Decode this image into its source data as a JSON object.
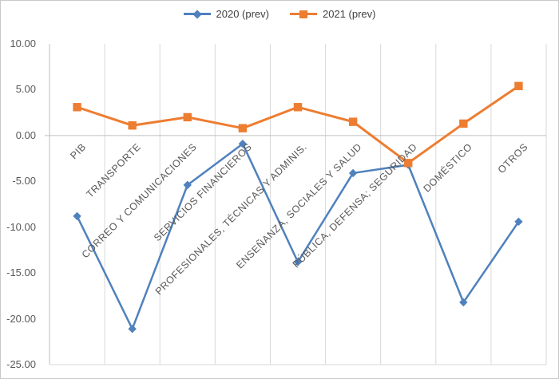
{
  "chart_data": {
    "type": "line",
    "title": "",
    "xlabel": "",
    "ylabel": "",
    "categories": [
      "PIB",
      "TRANSPORTE",
      "CORREO Y COMUNICACIONES",
      "SERVICIOS FINANCIEROS",
      "PROFESIONALES, TÉCNICAS Y ADMINIS.",
      "ENSEÑANZA, SOCIALES Y SALUD",
      "PÚBLICA, DEFENSA; SEGURIDAD",
      "DOMÉSTICO",
      "OTROS"
    ],
    "series": [
      {
        "name": "2020 (prev)",
        "color": "#4F81BD",
        "marker": "diamond",
        "values": [
          -8.8,
          -21.1,
          -5.4,
          -0.9,
          -13.8,
          -4.1,
          -3.2,
          -18.2,
          -9.4
        ]
      },
      {
        "name": "2021 (prev)",
        "color": "#ED7D31",
        "marker": "square",
        "values": [
          3.1,
          1.1,
          2.0,
          0.8,
          3.1,
          1.5,
          -3.0,
          1.3,
          5.4
        ]
      }
    ],
    "ylim": [
      -25,
      10
    ],
    "yticks": [
      "10.00",
      "5.00",
      "0.00",
      "-5.00",
      "-10.00",
      "-15.00",
      "-20.00",
      "-25.00"
    ],
    "ytick_values": [
      10,
      5,
      0,
      -5,
      -10,
      -15,
      -20,
      -25
    ],
    "grid": "vertical-gridlines-only",
    "legend_position": "top-center",
    "gridline_color": "#D9D9D9",
    "axis_line_color": "#BFBFBF",
    "label_color": "#595959"
  }
}
